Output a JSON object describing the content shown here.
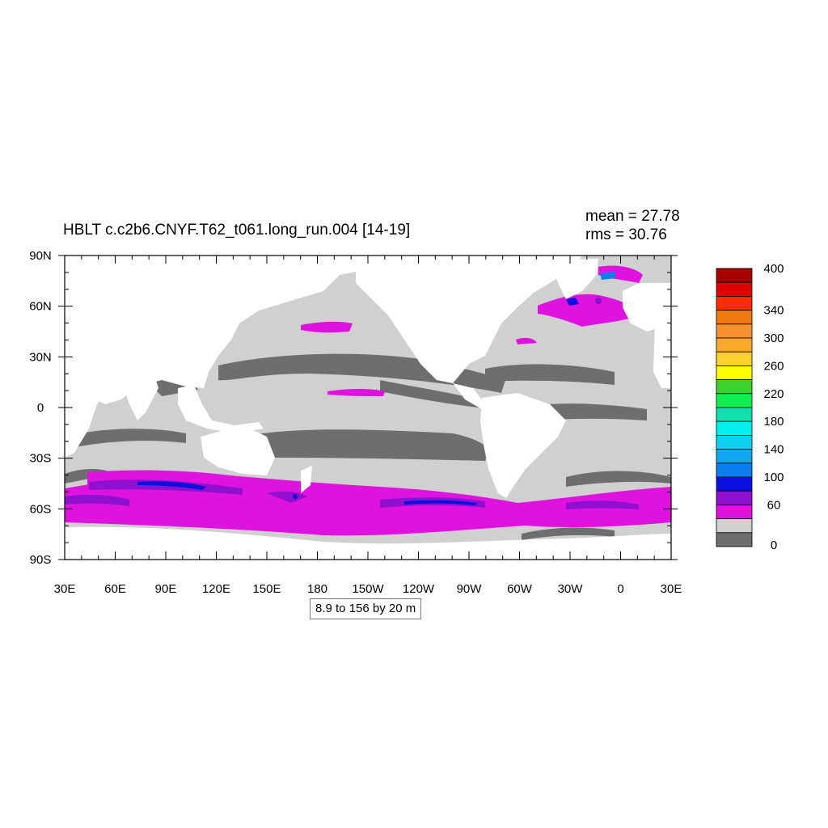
{
  "header": {
    "title": "HBLT c.c2b6.CNYF.T62_t061.long_run.004 [14-19]",
    "mean_label": "mean = ",
    "mean_value": "27.78",
    "rms_label": "rms = ",
    "rms_value": "30.76"
  },
  "map": {
    "x_ticks": [
      "30E",
      "60E",
      "90E",
      "120E",
      "150E",
      "180",
      "150W",
      "120W",
      "90W",
      "60W",
      "30W",
      "0",
      "30E"
    ],
    "y_ticks": [
      "90N",
      "60N",
      "30N",
      "0",
      "30S",
      "60S",
      "90S"
    ],
    "colors": {
      "land": "#ffffff",
      "level_0_20": "#6e6e6e",
      "level_20_40": "#d0d0d0",
      "level_40_60": "#e012e0",
      "level_60_80": "#9010d0",
      "level_80_100": "#0a10e0",
      "level_100_120": "#0a80f0"
    }
  },
  "info_box": "8.9 to 156 by 20 m",
  "colorbar": {
    "labels": [
      "400",
      "340",
      "300",
      "260",
      "220",
      "180",
      "140",
      "100",
      "60",
      "0"
    ],
    "swatches": [
      "#a80000",
      "#e00000",
      "#ff2a00",
      "#f07a10",
      "#f7902f",
      "#fca830",
      "#fcd12c",
      "#ffff00",
      "#3cd22c",
      "#10f050",
      "#10e0b0",
      "#00f0f0",
      "#10d0f0",
      "#10a8f0",
      "#0a80f0",
      "#0a10e0",
      "#9010d0",
      "#e012e0",
      "#d0d0d0",
      "#6e6e6e"
    ]
  }
}
